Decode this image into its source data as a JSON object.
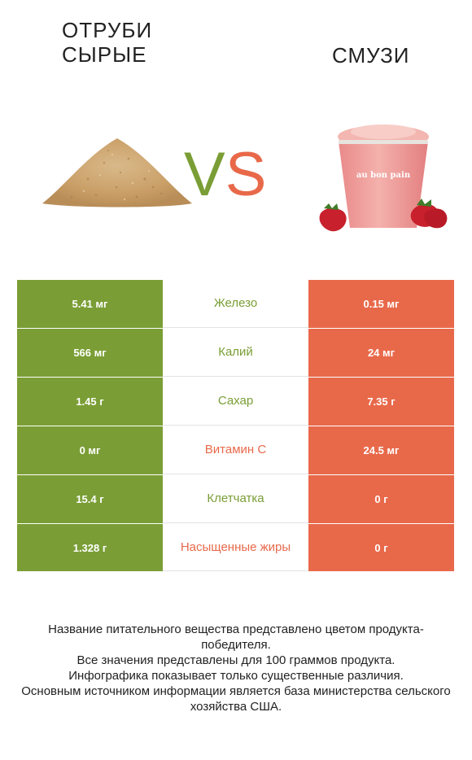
{
  "left": {
    "title_line1": "ОТРУБИ",
    "title_line2": "СЫРЫЕ"
  },
  "right": {
    "title": "СМУЗИ"
  },
  "vs": {
    "v": "V",
    "s": "S"
  },
  "cup_brand": "au bon pain",
  "colors": {
    "left": "#7a9e35",
    "right": "#e8694a"
  },
  "rows": [
    {
      "left": "5.41 мг",
      "name": "Железо",
      "right": "0.15 мг",
      "winner": "left"
    },
    {
      "left": "566 мг",
      "name": "Калий",
      "right": "24 мг",
      "winner": "left"
    },
    {
      "left": "1.45 г",
      "name": "Сахар",
      "right": "7.35 г",
      "winner": "left"
    },
    {
      "left": "0 мг",
      "name": "Витамин C",
      "right": "24.5 мг",
      "winner": "right"
    },
    {
      "left": "15.4 г",
      "name": "Клетчатка",
      "right": "0 г",
      "winner": "left"
    },
    {
      "left": "1.328 г",
      "name": "Насыщенные жиры",
      "right": "0 г",
      "winner": "right"
    }
  ],
  "notes": [
    "Название питательного вещества представлено цветом продукта-победителя.",
    "Все значения представлены для 100 граммов продукта.",
    "Инфографика показывает только существенные различия.",
    "Основным источником информации является база министерства сельского хозяйства США."
  ]
}
